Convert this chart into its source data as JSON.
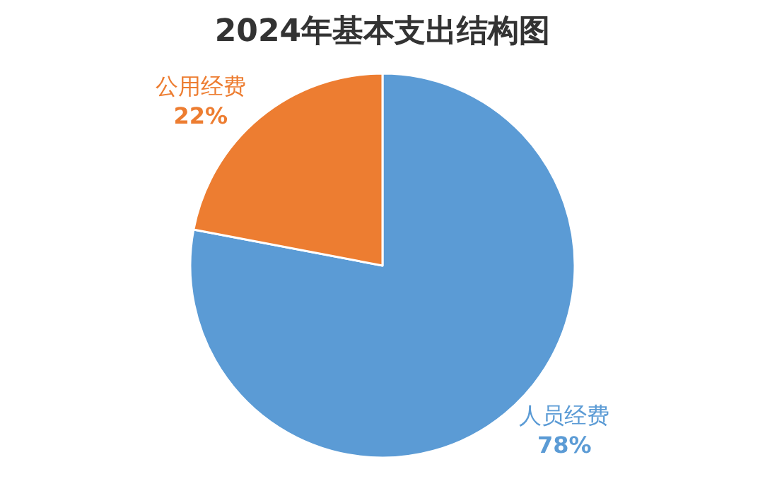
{
  "chart_data": {
    "type": "pie",
    "title": "2024年基本支出结构图",
    "categories": [
      "人员经费",
      "公用经费"
    ],
    "values": [
      78,
      22
    ],
    "value_labels": [
      "78%",
      "22%"
    ],
    "colors": [
      "#5b9bd5",
      "#ed7d31"
    ],
    "legend": false
  }
}
